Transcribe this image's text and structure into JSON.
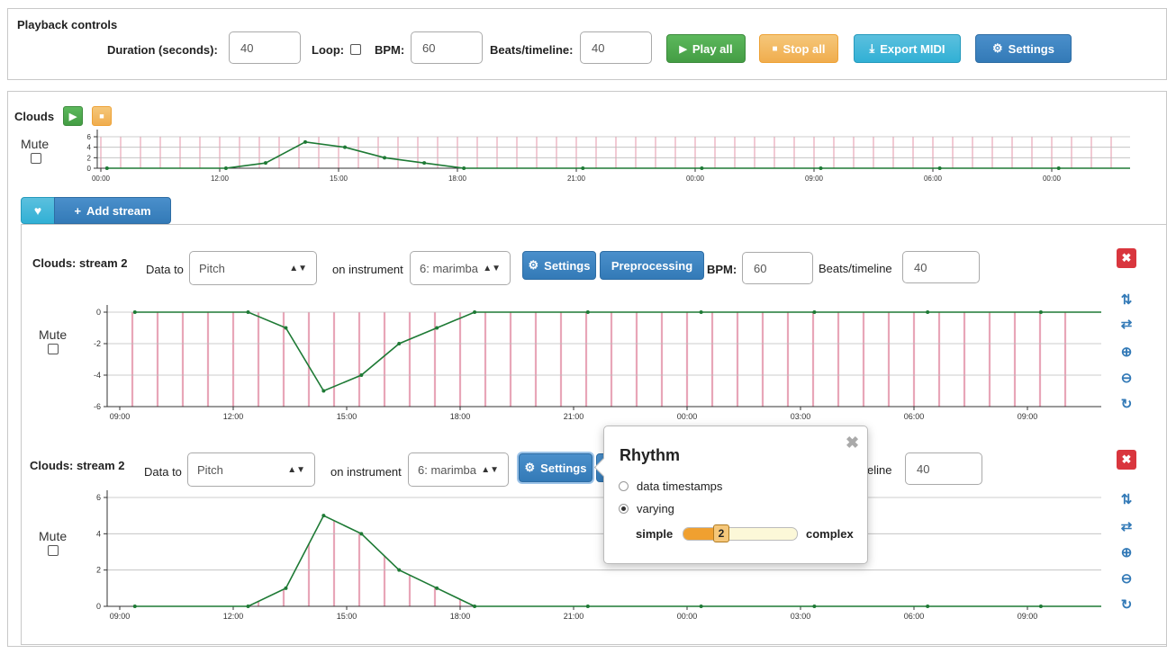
{
  "playback": {
    "title": "Playback controls",
    "duration_label": "Duration (seconds):",
    "duration_value": "40",
    "loop_label": "Loop:",
    "bpm_label": "BPM:",
    "bpm_value": "60",
    "beats_label": "Beats/timeline:",
    "beats_value": "40",
    "play_all": "Play all",
    "stop_all": "Stop all",
    "export_midi": "Export MIDI",
    "settings": "Settings"
  },
  "source": {
    "title": "Clouds",
    "mute_label": "Mute",
    "add_stream": "Add stream",
    "overview_yticks": [
      "6",
      "4",
      "2",
      "0"
    ],
    "overview_xticks": [
      "00:00",
      "12:00",
      "15:00",
      "18:00",
      "21:00",
      "00:00",
      "09:00",
      "06:00",
      "00:00"
    ]
  },
  "streams": [
    {
      "title": "Clouds: stream 2",
      "data_to_label": "Data to",
      "data_to_value": "Pitch",
      "instrument_label": "on instrument",
      "instrument_value": "6: marimba",
      "settings": "Settings",
      "preprocessing": "Preprocessing",
      "bpm_label": "BPM:",
      "bpm_value": "60",
      "beats_label": "Beats/timeline",
      "beats_value": "40",
      "mute_label": "Mute",
      "yticks": [
        "0",
        "-2",
        "-4",
        "-6"
      ],
      "xticks": [
        "09:00",
        "12:00",
        "15:00",
        "18:00",
        "21:00",
        "00:00",
        "03:00",
        "06:00",
        "09:00"
      ]
    },
    {
      "title": "Clouds: stream 2",
      "data_to_label": "Data to",
      "data_to_value": "Pitch",
      "instrument_label": "on instrument",
      "instrument_value": "6: marimba",
      "settings": "Settings",
      "beats_label": "eline",
      "beats_value": "40",
      "mute_label": "Mute",
      "yticks": [
        "6",
        "4",
        "2",
        "0"
      ],
      "xticks": [
        "09:00",
        "12:00",
        "15:00",
        "18:00",
        "21:00",
        "00:00",
        "03:00",
        "06:00",
        "09:00"
      ]
    }
  ],
  "rhythm_popover": {
    "title": "Rhythm",
    "option1": "data timestamps",
    "option2": "varying",
    "selected": "varying",
    "simple_label": "simple",
    "complex_label": "complex",
    "slider_value": "2"
  },
  "colors": {
    "line": "#1e7a35",
    "bars": "#e8a6b8",
    "grid": "#aaaaaa",
    "accent": "#337ab7"
  },
  "chart_data": [
    {
      "type": "line",
      "name": "Clouds overview",
      "xlabel": "",
      "ylabel": "",
      "ylim": [
        0,
        6
      ],
      "x": [
        "00:00",
        "12:00",
        "13:00",
        "14:00",
        "15:00",
        "16:00",
        "17:00",
        "18:00",
        "21:00",
        "00:00",
        "09:00",
        "06:00",
        "00:00"
      ],
      "values": [
        0,
        0,
        1,
        5,
        4,
        2,
        1,
        0,
        0,
        0,
        0,
        0,
        0
      ]
    },
    {
      "type": "line",
      "name": "Clouds: stream 2 (pitch)",
      "ylim": [
        -6,
        0
      ],
      "x": [
        "09:00",
        "12:00",
        "13:00",
        "14:00",
        "15:00",
        "16:00",
        "17:00",
        "18:00",
        "21:00",
        "00:00",
        "03:00",
        "06:00",
        "09:00"
      ],
      "values": [
        0,
        0,
        -1,
        -5,
        -4,
        -2,
        -1,
        0,
        0,
        0,
        0,
        0,
        0
      ]
    },
    {
      "type": "line",
      "name": "Clouds: stream 2 (rhythm)",
      "ylim": [
        0,
        6
      ],
      "x": [
        "09:00",
        "12:00",
        "13:00",
        "14:00",
        "15:00",
        "16:00",
        "17:00",
        "18:00",
        "21:00",
        "00:00",
        "03:00",
        "06:00",
        "09:00"
      ],
      "values": [
        0,
        0,
        1,
        5,
        4,
        2,
        1,
        0,
        0,
        0,
        0,
        0,
        0
      ]
    }
  ]
}
